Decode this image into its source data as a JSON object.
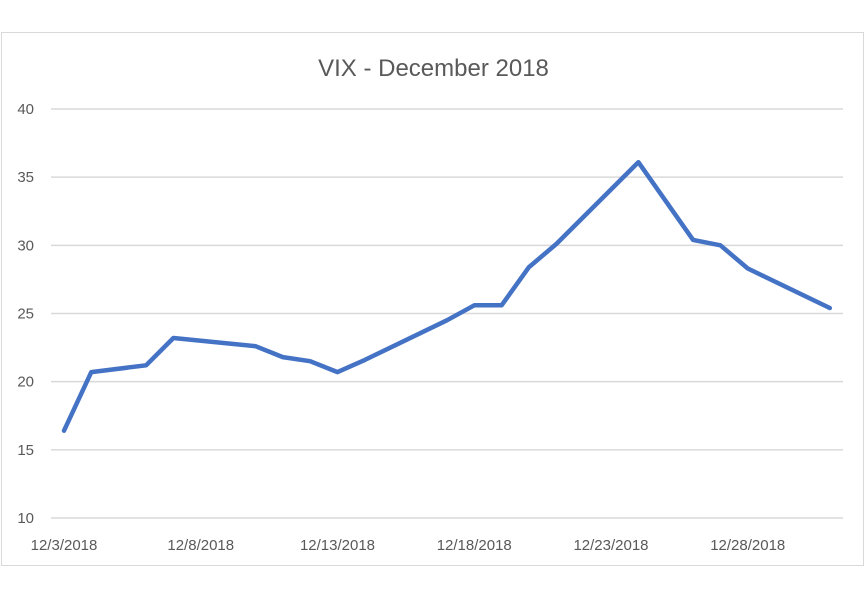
{
  "chart_data": {
    "type": "line",
    "title": "VIX - December 2018",
    "xlabel": "",
    "ylabel": "",
    "ylim": [
      10,
      40
    ],
    "yticks": [
      10,
      15,
      20,
      25,
      30,
      35,
      40
    ],
    "xtick_labels": [
      "12/3/2018",
      "12/8/2018",
      "12/13/2018",
      "12/18/2018",
      "12/23/2018",
      "12/28/2018"
    ],
    "grid": true,
    "legend": "none",
    "line_color": "#4472c4",
    "series": [
      {
        "name": "VIX",
        "x": [
          "12/3/2018",
          "12/4/2018",
          "12/6/2018",
          "12/7/2018",
          "12/10/2018",
          "12/11/2018",
          "12/12/2018",
          "12/13/2018",
          "12/14/2018",
          "12/17/2018",
          "12/18/2018",
          "12/19/2018",
          "12/20/2018",
          "12/21/2018",
          "12/24/2018",
          "12/26/2018",
          "12/27/2018",
          "12/28/2018",
          "12/31/2018"
        ],
        "day": [
          3,
          4,
          6,
          7,
          10,
          11,
          12,
          13,
          14,
          17,
          18,
          19,
          20,
          21,
          24,
          26,
          27,
          28,
          31
        ],
        "values": [
          16.4,
          20.7,
          21.2,
          23.2,
          22.6,
          21.8,
          21.5,
          20.7,
          21.6,
          24.5,
          25.6,
          25.6,
          28.4,
          30.1,
          36.1,
          30.4,
          30.0,
          28.3,
          25.4
        ]
      }
    ]
  }
}
